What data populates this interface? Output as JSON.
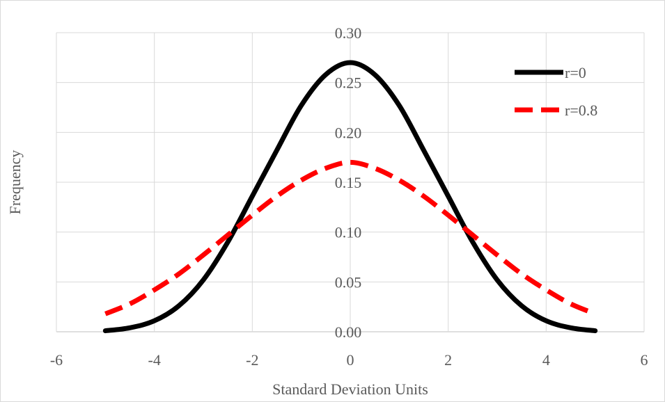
{
  "chart_data": {
    "type": "line",
    "title": "",
    "xlabel": "Standard Deviation Units",
    "ylabel": "Frequency",
    "xlim": [
      -6,
      6
    ],
    "ylim": [
      0,
      0.3
    ],
    "x_ticks": [
      -6,
      -4,
      -2,
      0,
      2,
      4,
      6
    ],
    "x_tick_labels": [
      "-6",
      "-4",
      "-2",
      "0",
      "2",
      "4",
      "6"
    ],
    "y_ticks": [
      0,
      0.05,
      0.1,
      0.15,
      0.2,
      0.25,
      0.3
    ],
    "y_tick_labels": [
      "0.00",
      "0.05",
      "0.10",
      "0.15",
      "0.20",
      "0.25",
      "0.30"
    ],
    "grid": true,
    "legend_position": "top-right",
    "x": [
      -5,
      -4.5,
      -4,
      -3.5,
      -3,
      -2.5,
      -2,
      -1.5,
      -1,
      -0.5,
      0,
      0.5,
      1,
      1.5,
      2,
      2.5,
      3,
      3.5,
      4,
      4.5,
      5
    ],
    "series": [
      {
        "name": "r=0",
        "color": "#000000",
        "style": "solid",
        "values": [
          0.001,
          0.004,
          0.011,
          0.026,
          0.052,
          0.09,
          0.136,
          0.182,
          0.227,
          0.258,
          0.27,
          0.258,
          0.227,
          0.182,
          0.136,
          0.09,
          0.052,
          0.026,
          0.011,
          0.004,
          0.001
        ]
      },
      {
        "name": "r=0.8",
        "color": "#ff0000",
        "style": "dashed",
        "values": [
          0.018,
          0.028,
          0.042,
          0.058,
          0.077,
          0.097,
          0.117,
          0.136,
          0.152,
          0.164,
          0.17,
          0.164,
          0.152,
          0.136,
          0.117,
          0.097,
          0.077,
          0.058,
          0.042,
          0.028,
          0.018
        ]
      }
    ]
  }
}
